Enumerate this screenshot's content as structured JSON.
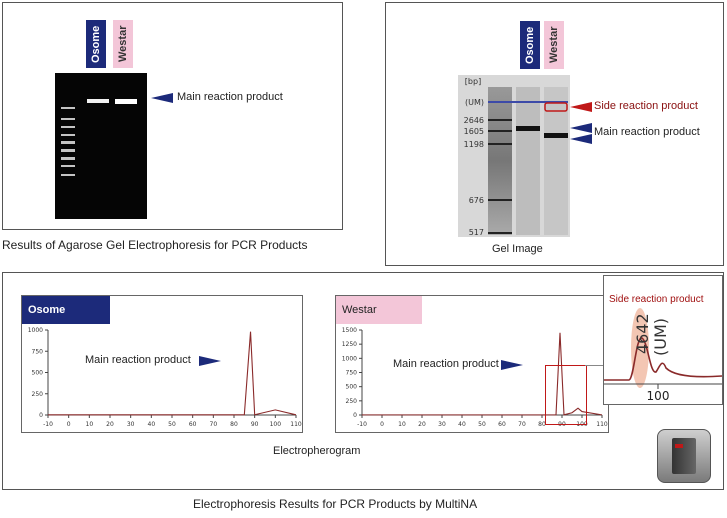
{
  "agarose": {
    "lanes": [
      "Osome",
      "Westar"
    ],
    "product_label": "Main reaction product",
    "caption": "Results of Agarose Gel Electrophoresis for PCR Products"
  },
  "gel": {
    "unit_label": "[bp]",
    "markers": [
      "(UM)",
      "2646",
      "1605",
      "1198",
      "676",
      "517"
    ],
    "lanes": [
      "Osome",
      "Westar"
    ],
    "side_label": "Side reaction product",
    "main_label": "Main reaction product",
    "caption": "Gel Image"
  },
  "electropherogram": {
    "osome_title": "Osome",
    "westar_title": "Westar",
    "main_label": "Main reaction product",
    "zoom_label": "Side reaction product",
    "zoom_peak": "4642",
    "zoom_um": "(UM)",
    "zoom_tick": "100",
    "caption": "Electropherogram"
  },
  "figure_caption": "Electrophoresis Results for PCR Products by MultiNA",
  "colors": {
    "navy": "#1c2a7a",
    "pink": "#f3c6d8",
    "red": "#c01818",
    "trace": "#8a2a2a"
  },
  "chart_data": [
    {
      "type": "line",
      "series": [
        {
          "name": "Osome",
          "x": [
            -10,
            0,
            10,
            20,
            30,
            40,
            50,
            60,
            70,
            80,
            85,
            88,
            90,
            100,
            110
          ],
          "y": [
            2,
            2,
            2,
            2,
            2,
            2,
            2,
            2,
            2,
            2,
            3,
            980,
            3,
            60,
            2
          ]
        }
      ],
      "xlim": [
        -10,
        110
      ],
      "ylim": [
        0,
        1000
      ],
      "xticks": [
        "-10",
        "0",
        "10",
        "20",
        "30",
        "40",
        "50",
        "60",
        "70",
        "80",
        "90",
        "100",
        "110"
      ],
      "yticks": [
        "0",
        "250",
        "500",
        "750",
        "1000"
      ]
    },
    {
      "type": "line",
      "series": [
        {
          "name": "Westar",
          "x": [
            -10,
            0,
            10,
            20,
            30,
            40,
            50,
            60,
            70,
            80,
            87,
            89,
            91,
            95,
            98,
            100,
            110
          ],
          "y": [
            2,
            2,
            2,
            2,
            2,
            2,
            2,
            2,
            2,
            2,
            3,
            1450,
            3,
            40,
            120,
            60,
            2
          ]
        }
      ],
      "xlim": [
        -10,
        110
      ],
      "ylim": [
        0,
        1500
      ],
      "xticks": [
        "-10",
        "0",
        "10",
        "20",
        "30",
        "40",
        "50",
        "60",
        "70",
        "80",
        "90",
        "100",
        "110"
      ],
      "yticks": [
        "0",
        "250",
        "500",
        "750",
        "1000",
        "1250",
        "1500"
      ]
    }
  ]
}
